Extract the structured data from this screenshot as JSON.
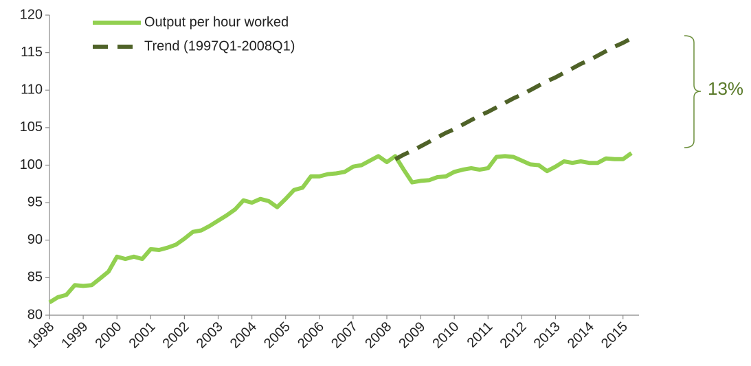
{
  "chart_data": {
    "type": "line",
    "categories": [
      "1998",
      null,
      null,
      null,
      "1999",
      null,
      null,
      null,
      "2000",
      null,
      null,
      null,
      "2001",
      null,
      null,
      null,
      "2002",
      null,
      null,
      null,
      "2003",
      null,
      null,
      null,
      "2004",
      null,
      null,
      null,
      "2005",
      null,
      null,
      null,
      "2006",
      null,
      null,
      null,
      "2007",
      null,
      null,
      null,
      "2008",
      null,
      null,
      null,
      "2009",
      null,
      null,
      null,
      "2010",
      null,
      null,
      null,
      "2011",
      null,
      null,
      null,
      "2012",
      null,
      null,
      null,
      "2013",
      null,
      null,
      null,
      "2014",
      null,
      null,
      null,
      "2015",
      null
    ],
    "series": [
      {
        "name": "Output per hour worked",
        "color": "#92d050",
        "dashed": false,
        "values": [
          81.7,
          82.4,
          82.7,
          84.0,
          83.9,
          84.0,
          84.9,
          85.8,
          87.8,
          87.5,
          87.8,
          87.5,
          88.8,
          88.7,
          89.0,
          89.4,
          90.2,
          91.1,
          91.3,
          91.9,
          92.6,
          93.3,
          94.1,
          95.3,
          95.0,
          95.5,
          95.2,
          94.4,
          95.5,
          96.7,
          97.0,
          98.5,
          98.5,
          98.8,
          98.9,
          99.1,
          99.8,
          100.0,
          100.6,
          101.2,
          100.4,
          101.2,
          99.4,
          97.7,
          97.9,
          98.0,
          98.4,
          98.5,
          99.1,
          99.4,
          99.6,
          99.4,
          99.6,
          101.1,
          101.2,
          101.1,
          100.6,
          100.1,
          100.0,
          99.2,
          99.8,
          100.5,
          100.3,
          100.5,
          100.3,
          100.3,
          100.9,
          100.8,
          100.8,
          101.6
        ]
      },
      {
        "name": "Trend (1997Q1-2008Q1)",
        "color": "#4f6228",
        "dashed": true,
        "values": [
          null,
          null,
          null,
          null,
          null,
          null,
          null,
          null,
          null,
          null,
          null,
          null,
          null,
          null,
          null,
          null,
          null,
          null,
          null,
          null,
          null,
          null,
          null,
          null,
          null,
          null,
          null,
          null,
          null,
          null,
          null,
          null,
          null,
          null,
          null,
          null,
          null,
          null,
          null,
          null,
          null,
          100.8,
          101.4,
          101.9,
          102.5,
          103.1,
          103.7,
          104.3,
          104.8,
          105.4,
          106.0,
          106.6,
          107.1,
          107.7,
          108.3,
          108.9,
          109.4,
          110.0,
          110.6,
          111.2,
          111.7,
          112.3,
          112.9,
          113.5,
          114.0,
          114.6,
          115.2,
          115.8,
          116.3,
          116.9
        ]
      }
    ],
    "ylim": [
      80,
      120
    ],
    "yticks": [
      80,
      85,
      90,
      95,
      100,
      105,
      110,
      115,
      120
    ],
    "grid": false,
    "legend": "top-left",
    "annotation": "13%",
    "annotation_color": "#5a7a2a"
  }
}
